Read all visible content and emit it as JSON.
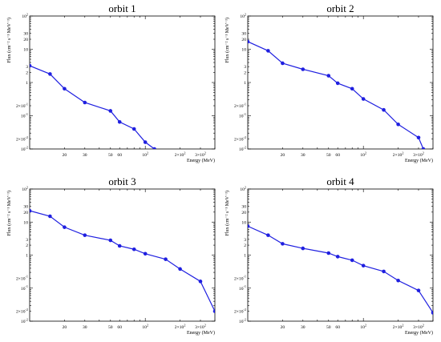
{
  "figure": {
    "xlabel": "Energy (MeV)",
    "ylabel": "Flux (cm⁻² s⁻¹ MeV⁻¹)"
  },
  "chart_data": [
    {
      "type": "line",
      "title": "orbit 1",
      "xscale": "log",
      "yscale": "log",
      "xlim": [
        10,
        400
      ],
      "ylim": [
        0.01,
        100
      ],
      "x": [
        10,
        15,
        20,
        30,
        50,
        60,
        80,
        100,
        120
      ],
      "series": [
        {
          "values": [
            3.2,
            1.8,
            0.65,
            0.25,
            0.14,
            0.065,
            0.04,
            0.016,
            0.01
          ]
        }
      ]
    },
    {
      "type": "line",
      "title": "orbit 2",
      "xscale": "log",
      "yscale": "log",
      "xlim": [
        10,
        400
      ],
      "ylim": [
        0.01,
        100
      ],
      "x": [
        10,
        15,
        20,
        30,
        50,
        60,
        80,
        100,
        150,
        200,
        300,
        330
      ],
      "series": [
        {
          "values": [
            17,
            9,
            3.8,
            2.5,
            1.6,
            0.95,
            0.65,
            0.32,
            0.15,
            0.055,
            0.022,
            0.01
          ]
        }
      ]
    },
    {
      "type": "line",
      "title": "orbit 3",
      "xscale": "log",
      "yscale": "log",
      "xlim": [
        10,
        400
      ],
      "ylim": [
        0.01,
        100
      ],
      "x": [
        10,
        15,
        20,
        30,
        50,
        60,
        80,
        100,
        150,
        200,
        300,
        400
      ],
      "series": [
        {
          "values": [
            22,
            15,
            7,
            4,
            2.8,
            1.9,
            1.5,
            1.1,
            0.75,
            0.38,
            0.16,
            0.02
          ]
        }
      ]
    },
    {
      "type": "line",
      "title": "orbit 4",
      "xscale": "log",
      "yscale": "log",
      "xlim": [
        10,
        400
      ],
      "ylim": [
        0.01,
        100
      ],
      "x": [
        10,
        15,
        20,
        30,
        50,
        60,
        80,
        100,
        150,
        200,
        300,
        400
      ],
      "series": [
        {
          "values": [
            7.5,
            4,
            2.2,
            1.6,
            1.15,
            0.9,
            0.7,
            0.48,
            0.32,
            0.17,
            0.085,
            0.018
          ]
        }
      ]
    }
  ],
  "axis": {
    "yticks": [
      {
        "v": 0.01,
        "base": "10",
        "exp": "-2"
      },
      {
        "v": 0.02,
        "base": "2×10",
        "exp": "-2"
      },
      {
        "v": 0.1,
        "base": "10",
        "exp": "-1"
      },
      {
        "v": 0.2,
        "base": "2×10",
        "exp": "-1"
      },
      {
        "v": 1,
        "base": "1",
        "exp": ""
      },
      {
        "v": 2,
        "base": "2",
        "exp": ""
      },
      {
        "v": 3,
        "base": "3",
        "exp": ""
      },
      {
        "v": 10,
        "base": "10",
        "exp": ""
      },
      {
        "v": 20,
        "base": "20",
        "exp": ""
      },
      {
        "v": 30,
        "base": "30",
        "exp": ""
      },
      {
        "v": 100,
        "base": "10",
        "exp": "2"
      }
    ],
    "xticks": [
      {
        "v": 20,
        "base": "20",
        "exp": ""
      },
      {
        "v": 30,
        "base": "30",
        "exp": ""
      },
      {
        "v": 50,
        "base": "50",
        "exp": ""
      },
      {
        "v": 60,
        "base": "60",
        "exp": ""
      },
      {
        "v": 100,
        "base": "10",
        "exp": "2"
      },
      {
        "v": 200,
        "base": "2×10",
        "exp": "2"
      },
      {
        "v": 300,
        "base": "3×10",
        "exp": "2"
      }
    ]
  }
}
